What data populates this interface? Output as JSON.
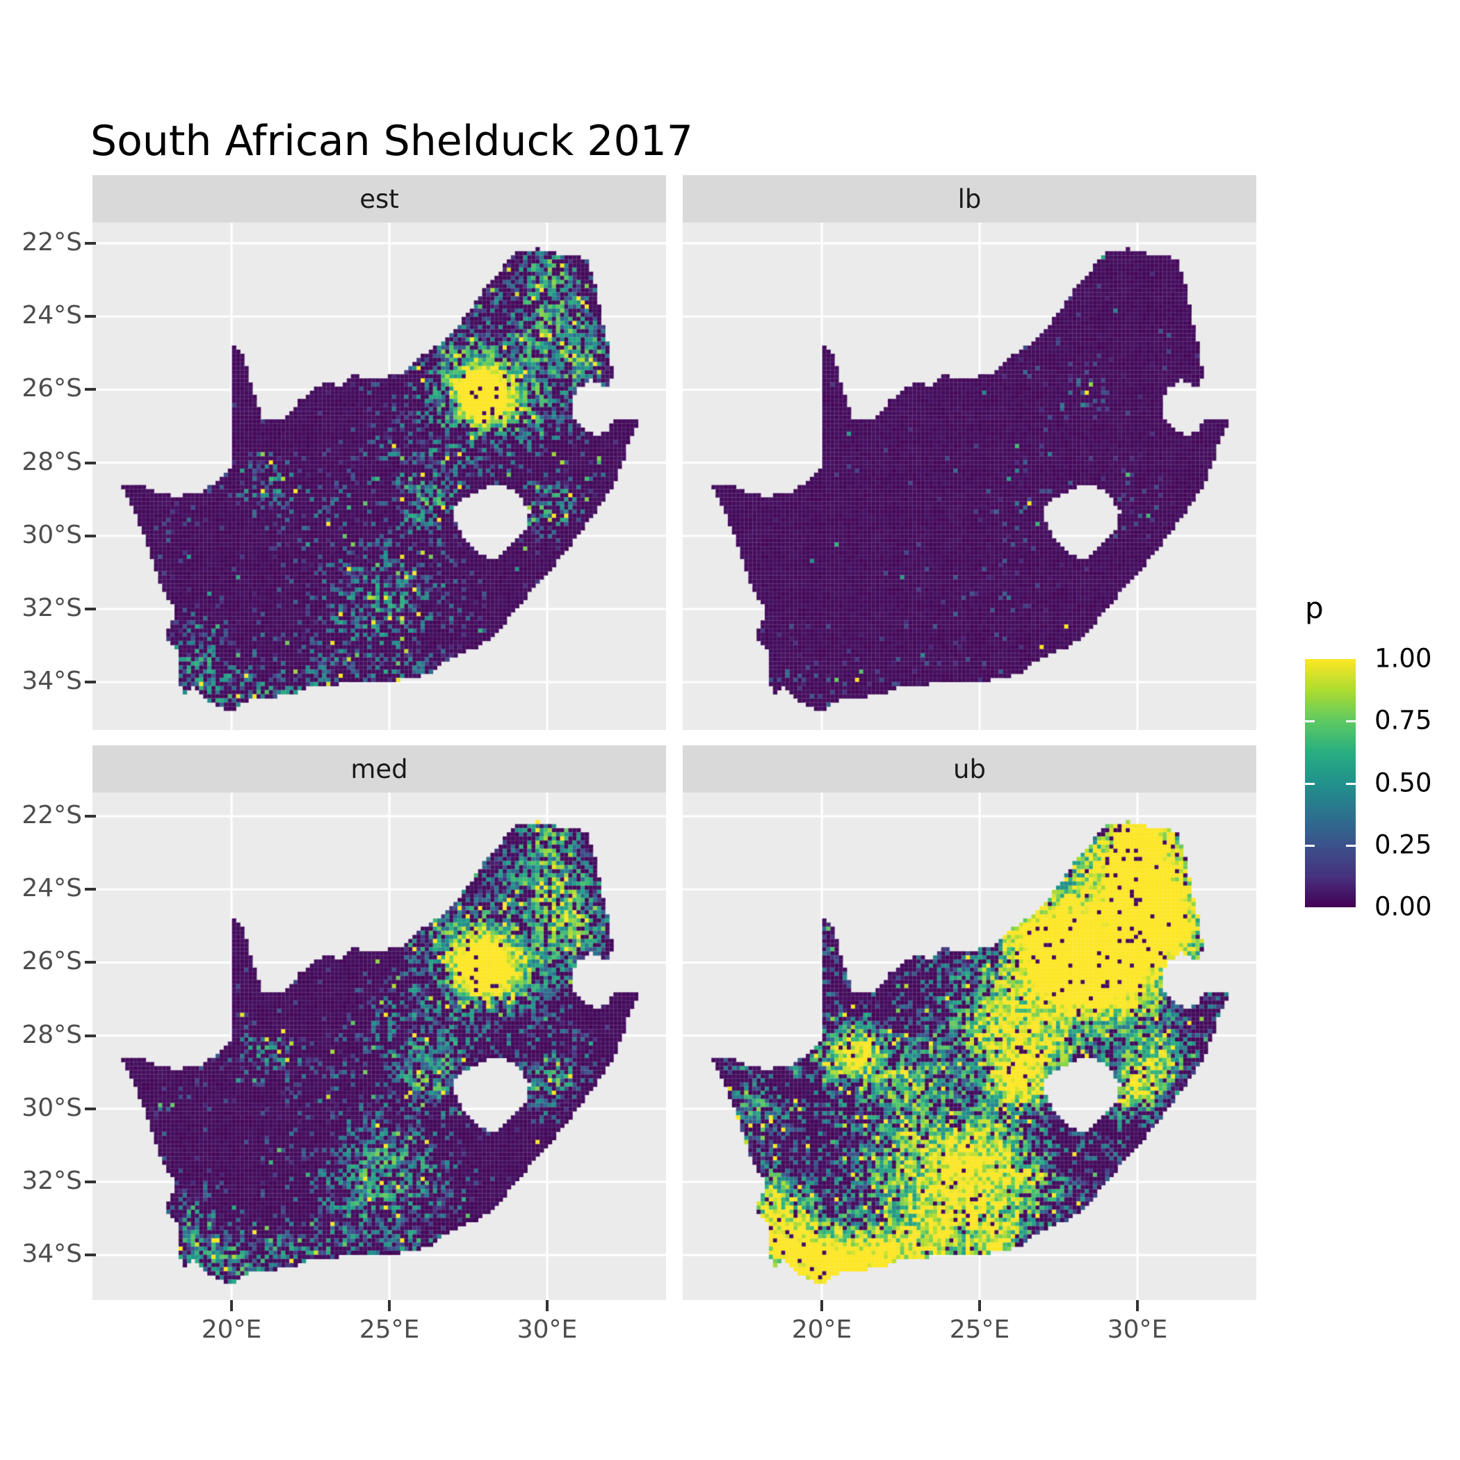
{
  "title": "South African Shelduck 2017",
  "facets": [
    {
      "label": "est"
    },
    {
      "label": "lb"
    },
    {
      "label": "med"
    },
    {
      "label": "ub"
    }
  ],
  "axes": {
    "x": {
      "ticks": [
        "20°E",
        "25°E",
        "30°E"
      ],
      "tick_degrees": [
        20,
        25,
        30
      ]
    },
    "y": {
      "ticks": [
        "22°S",
        "24°S",
        "26°S",
        "28°S",
        "30°S",
        "32°S",
        "34°S"
      ],
      "tick_degrees": [
        -22,
        -24,
        -26,
        -28,
        -30,
        -32,
        -34
      ]
    }
  },
  "legend": {
    "title": "p",
    "labels": [
      "1.00",
      "0.75",
      "0.50",
      "0.25",
      "0.00"
    ],
    "tick_fractions_from_top": [
      0.25,
      0.5,
      0.75
    ]
  },
  "colors": {
    "page_bg": "#FFFFFF",
    "panel_bg": "#EBEBEB",
    "strip_bg": "#D9D9D9",
    "strip_text": "#1A1A1A",
    "axis_text": "#4D4D4D",
    "tick_mark": "#333333",
    "gridline": "#FFFFFF",
    "title_text": "#000000",
    "map_base": "#440154",
    "viridis": [
      "#440154",
      "#46327e",
      "#3b528b",
      "#2c728e",
      "#21918c",
      "#28ae80",
      "#5ec962",
      "#addc30",
      "#fde725"
    ]
  },
  "chart_data": {
    "type": "heatmap",
    "subtype": "faceted-raster-map",
    "region": "South Africa",
    "title": "South African Shelduck 2017",
    "facet_labels": [
      "est",
      "lb",
      "med",
      "ub"
    ],
    "value_name": "p",
    "value_range": [
      0.0,
      1.0
    ],
    "lon_range": [
      15.6,
      33.8
    ],
    "lat_range": [
      -35.2,
      -21.4
    ],
    "x_ticks_deg": [
      20,
      25,
      30
    ],
    "y_ticks_deg": [
      -22,
      -24,
      -26,
      -28,
      -30,
      -32,
      -34
    ],
    "legend_position": "right",
    "grid": "major-white-on-grey",
    "outline": [
      [
        16.45,
        -28.58
      ],
      [
        17.1,
        -28.62
      ],
      [
        17.6,
        -28.78
      ],
      [
        18.25,
        -28.92
      ],
      [
        19.0,
        -28.8
      ],
      [
        19.55,
        -28.5
      ],
      [
        19.99,
        -28.13
      ],
      [
        19.99,
        -24.77
      ],
      [
        20.38,
        -25.05
      ],
      [
        20.65,
        -25.95
      ],
      [
        20.99,
        -26.85
      ],
      [
        21.65,
        -26.87
      ],
      [
        22.1,
        -26.35
      ],
      [
        22.65,
        -25.95
      ],
      [
        23.05,
        -25.75
      ],
      [
        23.4,
        -25.9
      ],
      [
        23.85,
        -25.6
      ],
      [
        24.45,
        -25.73
      ],
      [
        25.05,
        -25.63
      ],
      [
        25.45,
        -25.52
      ],
      [
        25.85,
        -25.15
      ],
      [
        26.35,
        -24.9
      ],
      [
        26.9,
        -24.55
      ],
      [
        27.6,
        -23.75
      ],
      [
        28.15,
        -23.1
      ],
      [
        28.65,
        -22.6
      ],
      [
        29.1,
        -22.22
      ],
      [
        29.75,
        -22.15
      ],
      [
        30.4,
        -22.3
      ],
      [
        31.0,
        -22.33
      ],
      [
        31.3,
        -22.5
      ],
      [
        31.5,
        -23.1
      ],
      [
        31.65,
        -23.7
      ],
      [
        31.8,
        -24.3
      ],
      [
        31.98,
        -24.9
      ],
      [
        32.05,
        -25.55
      ],
      [
        31.97,
        -25.98
      ],
      [
        31.35,
        -25.72
      ],
      [
        30.92,
        -26.0
      ],
      [
        30.78,
        -26.4
      ],
      [
        30.85,
        -26.82
      ],
      [
        31.15,
        -27.12
      ],
      [
        31.65,
        -27.3
      ],
      [
        31.97,
        -27.05
      ],
      [
        32.12,
        -26.85
      ],
      [
        32.55,
        -26.86
      ],
      [
        32.89,
        -26.86
      ],
      [
        32.62,
        -27.35
      ],
      [
        32.4,
        -27.95
      ],
      [
        32.15,
        -28.5
      ],
      [
        31.75,
        -29.1
      ],
      [
        31.1,
        -29.85
      ],
      [
        30.65,
        -30.35
      ],
      [
        30.0,
        -31.05
      ],
      [
        29.3,
        -31.7
      ],
      [
        28.55,
        -32.5
      ],
      [
        27.9,
        -33.0
      ],
      [
        27.0,
        -33.3
      ],
      [
        26.3,
        -33.73
      ],
      [
        25.65,
        -33.9
      ],
      [
        24.8,
        -34.0
      ],
      [
        23.9,
        -33.96
      ],
      [
        23.1,
        -34.1
      ],
      [
        22.5,
        -34.08
      ],
      [
        21.9,
        -34.35
      ],
      [
        21.3,
        -34.4
      ],
      [
        20.55,
        -34.45
      ],
      [
        20.0,
        -34.8
      ],
      [
        19.35,
        -34.55
      ],
      [
        19.0,
        -34.35
      ],
      [
        18.82,
        -34.08
      ],
      [
        18.48,
        -34.33
      ],
      [
        18.3,
        -33.85
      ],
      [
        18.35,
        -33.1
      ],
      [
        17.85,
        -32.8
      ],
      [
        18.28,
        -32.1
      ],
      [
        18.0,
        -31.7
      ],
      [
        17.65,
        -31.1
      ],
      [
        17.45,
        -30.6
      ],
      [
        17.25,
        -30.0
      ],
      [
        16.9,
        -29.3
      ]
    ],
    "lesotho_hole": [
      [
        27.55,
        -28.88
      ],
      [
        28.1,
        -28.62
      ],
      [
        28.65,
        -28.58
      ],
      [
        29.15,
        -28.9
      ],
      [
        29.45,
        -29.35
      ],
      [
        29.33,
        -29.85
      ],
      [
        28.95,
        -30.2
      ],
      [
        28.4,
        -30.65
      ],
      [
        27.8,
        -30.5
      ],
      [
        27.35,
        -30.05
      ],
      [
        27.02,
        -29.55
      ],
      [
        27.1,
        -29.15
      ]
    ],
    "cell_deg": 0.13,
    "pattern_clusters": [
      [
        28.0,
        -26.15,
        0.5
      ],
      [
        28.0,
        -26.0,
        1.3
      ],
      [
        29.7,
        -23.3,
        1.0
      ],
      [
        30.7,
        -24.4,
        0.9
      ],
      [
        30.2,
        -22.5,
        0.55
      ],
      [
        31.1,
        -25.3,
        0.7
      ],
      [
        29.7,
        -26.5,
        0.8
      ],
      [
        26.9,
        -25.2,
        0.9
      ],
      [
        29.95,
        -29.45,
        0.55
      ],
      [
        30.7,
        -28.6,
        0.6
      ],
      [
        26.7,
        -28.5,
        0.9
      ],
      [
        26.15,
        -29.25,
        0.55
      ],
      [
        25.0,
        -27.6,
        0.8
      ],
      [
        25.1,
        -31.1,
        0.95
      ],
      [
        24.2,
        -32.4,
        0.85
      ],
      [
        22.9,
        -29.2,
        0.8
      ],
      [
        20.7,
        -28.5,
        0.7
      ],
      [
        25.6,
        -33.8,
        0.55
      ],
      [
        23.2,
        -34.0,
        0.9
      ],
      [
        20.4,
        -34.4,
        0.7
      ],
      [
        18.95,
        -33.7,
        0.8
      ],
      [
        18.25,
        -32.35,
        0.6
      ],
      [
        17.9,
        -30.2,
        0.55
      ],
      [
        22.3,
        -31.3,
        1.1
      ],
      [
        26.5,
        -32.3,
        0.8
      ],
      [
        21.7,
        -34.2,
        0.6
      ],
      [
        21.2,
        -28.45,
        0.5
      ]
    ],
    "facet_params": {
      "est": {
        "seed": 11,
        "bg": 0.05,
        "amps": [
          1.5,
          0.5,
          0.35,
          0.4,
          0.35,
          0.3,
          0.3,
          0.28,
          0.55,
          0.25,
          0.3,
          0.35,
          0.22,
          0.35,
          0.3,
          0.2,
          0.2,
          0.35,
          0.3,
          0.35,
          0.45,
          0.2,
          0.15,
          0.12,
          0.22,
          0.2,
          0.25
        ]
      },
      "lb": {
        "seed": 22,
        "bg": 0.013,
        "amps": [
          0.25,
          0.06,
          0.04,
          0.05,
          0.03,
          0.04,
          0.05,
          0.03,
          0.22,
          0.05,
          0.08,
          0.14,
          0.03,
          0.1,
          0.07,
          0.03,
          0.03,
          0.08,
          0.1,
          0.08,
          0.16,
          0.05,
          0.02,
          0.02,
          0.04,
          0.05,
          0.04
        ]
      },
      "med": {
        "seed": 33,
        "bg": 0.06,
        "amps": [
          1.6,
          0.55,
          0.4,
          0.45,
          0.4,
          0.35,
          0.35,
          0.3,
          0.6,
          0.3,
          0.35,
          0.4,
          0.25,
          0.45,
          0.35,
          0.22,
          0.22,
          0.4,
          0.35,
          0.4,
          0.5,
          0.22,
          0.17,
          0.15,
          0.28,
          0.25,
          0.28
        ]
      },
      "ub": {
        "seed": 44,
        "bg": 0.3,
        "amps": [
          1.8,
          1.0,
          0.9,
          0.8,
          0.7,
          0.6,
          0.65,
          0.55,
          0.75,
          0.5,
          0.55,
          0.6,
          0.5,
          0.6,
          0.6,
          0.45,
          0.45,
          0.65,
          0.7,
          0.85,
          0.95,
          0.55,
          0.4,
          0.45,
          0.5,
          0.6,
          0.5
        ]
      }
    }
  }
}
